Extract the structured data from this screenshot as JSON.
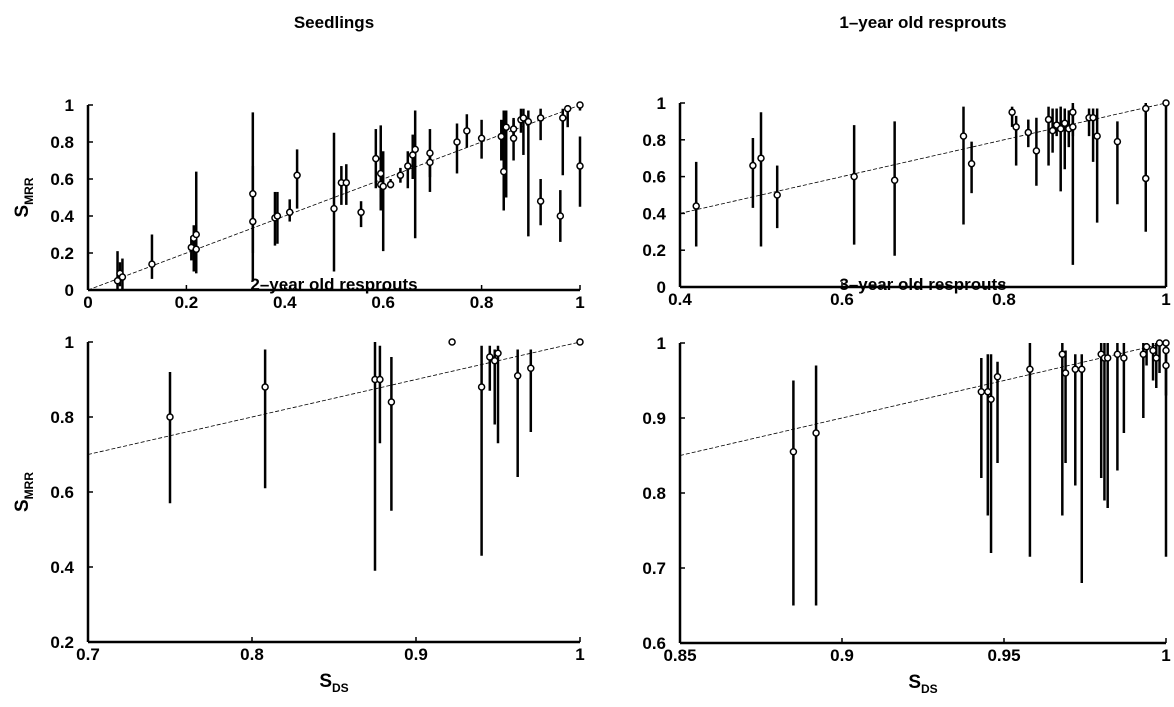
{
  "chart_data": [
    {
      "type": "scatter",
      "title": "Seedlings",
      "ylabel": "S",
      "ylabel_subscript": "MRR",
      "xlim": [
        0,
        1
      ],
      "ylim": [
        0,
        1
      ],
      "xticks": [
        0,
        0.2,
        0.4,
        0.6,
        0.8,
        1
      ],
      "yticks": [
        0,
        0.2,
        0.4,
        0.6,
        0.8,
        1
      ],
      "diagonal": true,
      "x": [
        0.06,
        0.065,
        0.07,
        0.13,
        0.21,
        0.215,
        0.22,
        0.22,
        0.335,
        0.335,
        0.38,
        0.385,
        0.41,
        0.425,
        0.5,
        0.515,
        0.525,
        0.555,
        0.585,
        0.595,
        0.595,
        0.6,
        0.615,
        0.635,
        0.65,
        0.66,
        0.665,
        0.695,
        0.695,
        0.75,
        0.77,
        0.8,
        0.84,
        0.845,
        0.85,
        0.865,
        0.865,
        0.88,
        0.885,
        0.895,
        0.92,
        0.92,
        0.96,
        0.965,
        0.975,
        1.0,
        1.0
      ],
      "values": [
        0.05,
        0.09,
        0.07,
        0.14,
        0.23,
        0.28,
        0.3,
        0.22,
        0.37,
        0.52,
        0.39,
        0.4,
        0.42,
        0.62,
        0.44,
        0.58,
        0.58,
        0.42,
        0.71,
        0.63,
        0.57,
        0.56,
        0.57,
        0.62,
        0.67,
        0.73,
        0.76,
        0.69,
        0.74,
        0.8,
        0.86,
        0.82,
        0.83,
        0.64,
        0.88,
        0.82,
        0.87,
        0.92,
        0.93,
        0.91,
        0.93,
        0.48,
        0.4,
        0.93,
        0.98,
        1.0,
        0.67
      ],
      "ylow": [
        0.0,
        0.02,
        0.0,
        0.06,
        0.16,
        0.1,
        0.12,
        0.09,
        0.05,
        0.2,
        0.24,
        0.25,
        0.37,
        0.44,
        0.1,
        0.46,
        0.46,
        0.34,
        0.55,
        0.5,
        0.43,
        0.21,
        0.55,
        0.58,
        0.55,
        0.6,
        0.28,
        0.53,
        0.61,
        0.63,
        0.77,
        0.71,
        0.7,
        0.43,
        0.5,
        0.7,
        0.8,
        0.85,
        0.73,
        0.29,
        0.81,
        0.35,
        0.26,
        0.62,
        0.88,
        0.97,
        0.45
      ],
      "yhigh": [
        0.21,
        0.15,
        0.17,
        0.3,
        0.29,
        0.35,
        0.64,
        0.35,
        0.67,
        0.96,
        0.53,
        0.53,
        0.49,
        0.76,
        0.85,
        0.67,
        0.68,
        0.48,
        0.87,
        0.89,
        0.76,
        0.75,
        0.6,
        0.66,
        0.75,
        0.84,
        0.97,
        0.75,
        0.87,
        0.9,
        0.95,
        0.92,
        0.92,
        0.97,
        0.97,
        0.92,
        0.93,
        0.98,
        0.98,
        0.97,
        0.98,
        0.6,
        0.54,
        0.98,
        1.0,
        1.0,
        0.83
      ]
    },
    {
      "type": "scatter",
      "title": "1–year old resprouts",
      "xlim": [
        0.4,
        1
      ],
      "ylim": [
        0,
        1
      ],
      "xticks": [
        0.4,
        0.6,
        0.8,
        1
      ],
      "yticks": [
        0,
        0.2,
        0.4,
        0.6,
        0.8,
        1
      ],
      "diagonal": true,
      "x": [
        0.42,
        0.49,
        0.5,
        0.52,
        0.615,
        0.665,
        0.75,
        0.76,
        0.81,
        0.815,
        0.83,
        0.84,
        0.855,
        0.86,
        0.865,
        0.87,
        0.875,
        0.88,
        0.885,
        0.885,
        0.905,
        0.91,
        0.915,
        0.94,
        0.975,
        0.975,
        1.0
      ],
      "values": [
        0.44,
        0.66,
        0.7,
        0.5,
        0.6,
        0.58,
        0.82,
        0.67,
        0.95,
        0.87,
        0.84,
        0.74,
        0.91,
        0.85,
        0.88,
        0.86,
        0.89,
        0.86,
        0.95,
        0.87,
        0.92,
        0.92,
        0.82,
        0.79,
        0.97,
        0.59,
        1.0
      ],
      "ylow": [
        0.22,
        0.43,
        0.22,
        0.32,
        0.23,
        0.17,
        0.34,
        0.51,
        0.87,
        0.66,
        0.76,
        0.55,
        0.66,
        0.73,
        0.82,
        0.52,
        0.64,
        0.76,
        0.82,
        0.12,
        0.82,
        0.68,
        0.35,
        0.45,
        0.6,
        0.3,
        0.0
      ],
      "yhigh": [
        0.68,
        0.81,
        0.95,
        0.66,
        0.88,
        0.9,
        0.98,
        0.79,
        0.98,
        0.93,
        0.91,
        0.92,
        0.98,
        0.97,
        0.97,
        0.98,
        0.97,
        0.96,
        1.0,
        0.98,
        0.97,
        0.97,
        0.97,
        0.9,
        1.0,
        0.75,
        1.0
      ]
    },
    {
      "type": "scatter",
      "title": "2–year old resprouts",
      "ylabel": "S",
      "ylabel_subscript": "MRR",
      "xlabel": "S",
      "xlabel_subscript": "DS",
      "xlim": [
        0.7,
        1
      ],
      "ylim": [
        0.2,
        1
      ],
      "xticks": [
        0.7,
        0.8,
        0.9,
        1
      ],
      "yticks": [
        0.2,
        0.4,
        0.6,
        0.8,
        1
      ],
      "diagonal": true,
      "x": [
        0.75,
        0.808,
        0.875,
        0.878,
        0.885,
        0.922,
        0.94,
        0.945,
        0.948,
        0.95,
        0.962,
        0.97,
        1.0
      ],
      "values": [
        0.8,
        0.88,
        0.9,
        0.9,
        0.84,
        1.0,
        0.88,
        0.96,
        0.95,
        0.97,
        0.91,
        0.93,
        1.0
      ],
      "ylow": [
        0.57,
        0.61,
        0.39,
        0.73,
        0.55,
        1.0,
        0.43,
        0.87,
        0.78,
        0.73,
        0.64,
        0.76,
        1.0
      ],
      "yhigh": [
        0.92,
        0.98,
        1.0,
        0.99,
        0.96,
        1.0,
        0.99,
        0.99,
        0.98,
        0.99,
        0.98,
        0.98,
        1.0
      ]
    },
    {
      "type": "scatter",
      "title": "3–year old resprouts",
      "xlabel": "S",
      "xlabel_subscript": "DS",
      "xlim": [
        0.85,
        1
      ],
      "ylim": [
        0.6,
        1
      ],
      "xticks": [
        0.85,
        0.9,
        0.95,
        1
      ],
      "yticks": [
        0.6,
        0.7,
        0.8,
        0.9,
        1
      ],
      "diagonal": true,
      "x": [
        0.885,
        0.892,
        0.943,
        0.945,
        0.946,
        0.948,
        0.958,
        0.968,
        0.969,
        0.972,
        0.974,
        0.98,
        0.981,
        0.982,
        0.985,
        0.987,
        0.993,
        0.994,
        0.996,
        0.997,
        0.998,
        1.0,
        1.0,
        1.0
      ],
      "values": [
        0.855,
        0.88,
        0.935,
        0.935,
        0.925,
        0.955,
        0.965,
        0.985,
        0.96,
        0.965,
        0.965,
        0.985,
        0.98,
        0.98,
        0.985,
        0.98,
        0.985,
        0.995,
        0.99,
        0.98,
        1.0,
        0.97,
        0.99,
        1.0
      ],
      "ylow": [
        0.65,
        0.65,
        0.82,
        0.77,
        0.72,
        0.84,
        0.715,
        0.77,
        0.84,
        0.81,
        0.68,
        0.82,
        0.79,
        0.78,
        0.83,
        0.88,
        0.9,
        0.97,
        0.95,
        0.94,
        0.96,
        0.715,
        0.93,
        1.0
      ],
      "yhigh": [
        0.95,
        0.97,
        0.98,
        0.985,
        0.985,
        0.975,
        1.0,
        1.0,
        0.99,
        0.985,
        0.985,
        1.0,
        1.0,
        1.0,
        1.0,
        1.0,
        1.0,
        1.0,
        1.0,
        1.0,
        1.0,
        1.0,
        1.0,
        1.0
      ]
    }
  ]
}
